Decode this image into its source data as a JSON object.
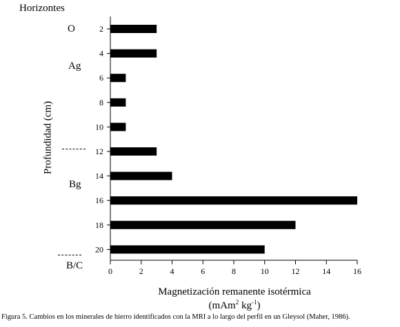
{
  "chart_data": {
    "type": "bar",
    "orientation": "horizontal",
    "title": "",
    "categories": [
      "2",
      "4",
      "6",
      "8",
      "10",
      "12",
      "14",
      "16",
      "18",
      "20"
    ],
    "values": [
      3,
      3,
      1,
      1,
      1,
      3,
      4,
      16,
      12,
      10
    ],
    "xlabel": "Magnetización remanente isotérmica",
    "xunits_base": "(mAm",
    "xunits_sup1": "2",
    "xunits_mid": " kg",
    "xunits_sup2": "-1",
    "xunits_end": ")",
    "ylabel": "Profundidad (cm)",
    "xlim": [
      0,
      16
    ],
    "xticks": [
      "0",
      "2",
      "4",
      "6",
      "8",
      "10",
      "12",
      "14",
      "16"
    ],
    "grid": false,
    "bar_color": "#000000"
  },
  "horizons": {
    "title": "Horizontes",
    "labels": [
      "O",
      "Ag",
      "Bg",
      "B/C"
    ]
  },
  "caption": "Figura 5. Cambios en los minerales de hierro identificados con la MRI a lo largo del perfil en un Gleysol (Maher, 1986)."
}
